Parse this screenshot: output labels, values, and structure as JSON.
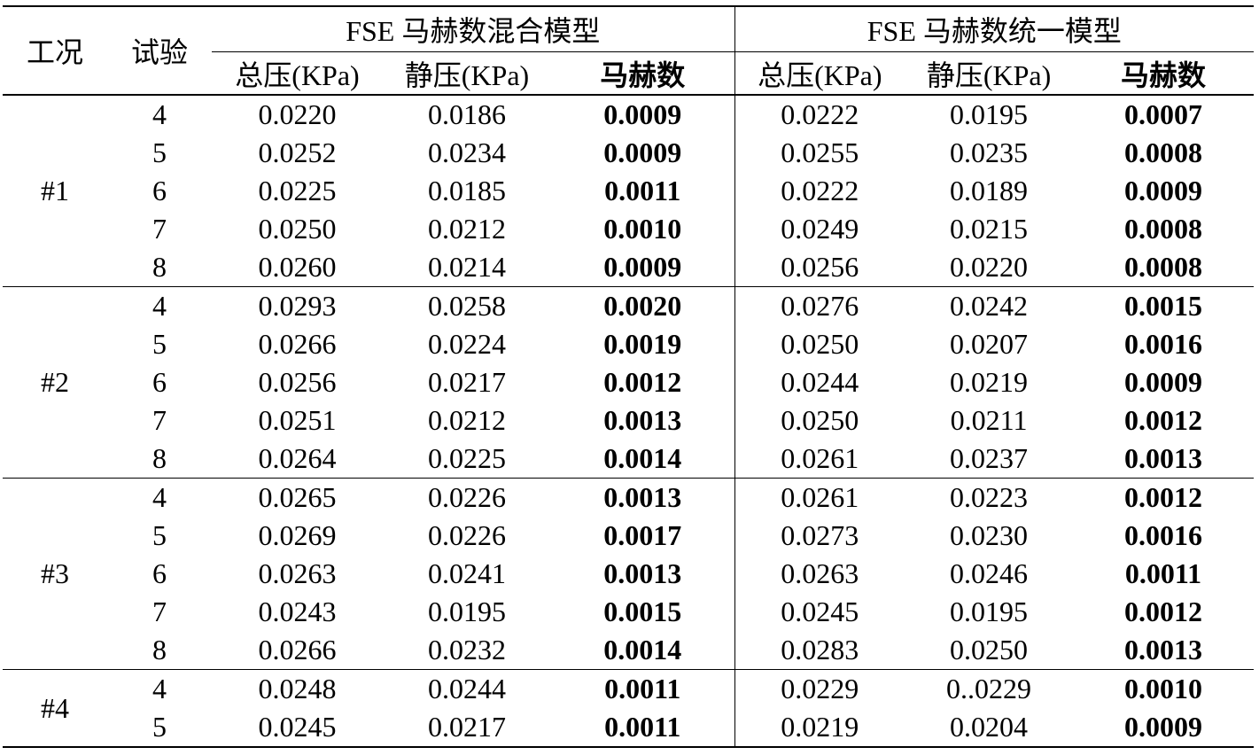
{
  "table": {
    "headers": {
      "condition": "工况",
      "trial": "试验",
      "group_left": "FSE 马赫数混合模型",
      "group_right": "FSE 马赫数统一模型",
      "total_pressure": "总压(KPa)",
      "static_pressure": "静压(KPa)",
      "mach": "马赫数"
    },
    "groups": [
      {
        "condition": "#1",
        "rows": [
          {
            "trial": "4",
            "mix_total": "0.0220",
            "mix_static": "0.0186",
            "mix_mach": "0.0009",
            "uni_total": "0.0222",
            "uni_static": "0.0195",
            "uni_mach": "0.0007"
          },
          {
            "trial": "5",
            "mix_total": "0.0252",
            "mix_static": "0.0234",
            "mix_mach": "0.0009",
            "uni_total": "0.0255",
            "uni_static": "0.0235",
            "uni_mach": "0.0008"
          },
          {
            "trial": "6",
            "mix_total": "0.0225",
            "mix_static": "0.0185",
            "mix_mach": "0.0011",
            "uni_total": "0.0222",
            "uni_static": "0.0189",
            "uni_mach": "0.0009"
          },
          {
            "trial": "7",
            "mix_total": "0.0250",
            "mix_static": "0.0212",
            "mix_mach": "0.0010",
            "uni_total": "0.0249",
            "uni_static": "0.0215",
            "uni_mach": "0.0008"
          },
          {
            "trial": "8",
            "mix_total": "0.0260",
            "mix_static": "0.0214",
            "mix_mach": "0.0009",
            "uni_total": "0.0256",
            "uni_static": "0.0220",
            "uni_mach": "0.0008"
          }
        ]
      },
      {
        "condition": "#2",
        "rows": [
          {
            "trial": "4",
            "mix_total": "0.0293",
            "mix_static": "0.0258",
            "mix_mach": "0.0020",
            "uni_total": "0.0276",
            "uni_static": "0.0242",
            "uni_mach": "0.0015"
          },
          {
            "trial": "5",
            "mix_total": "0.0266",
            "mix_static": "0.0224",
            "mix_mach": "0.0019",
            "uni_total": "0.0250",
            "uni_static": "0.0207",
            "uni_mach": "0.0016"
          },
          {
            "trial": "6",
            "mix_total": "0.0256",
            "mix_static": "0.0217",
            "mix_mach": "0.0012",
            "uni_total": "0.0244",
            "uni_static": "0.0219",
            "uni_mach": "0.0009"
          },
          {
            "trial": "7",
            "mix_total": "0.0251",
            "mix_static": "0.0212",
            "mix_mach": "0.0013",
            "uni_total": "0.0250",
            "uni_static": "0.0211",
            "uni_mach": "0.0012"
          },
          {
            "trial": "8",
            "mix_total": "0.0264",
            "mix_static": "0.0225",
            "mix_mach": "0.0014",
            "uni_total": "0.0261",
            "uni_static": "0.0237",
            "uni_mach": "0.0013"
          }
        ]
      },
      {
        "condition": "#3",
        "rows": [
          {
            "trial": "4",
            "mix_total": "0.0265",
            "mix_static": "0.0226",
            "mix_mach": "0.0013",
            "uni_total": "0.0261",
            "uni_static": "0.0223",
            "uni_mach": "0.0012"
          },
          {
            "trial": "5",
            "mix_total": "0.0269",
            "mix_static": "0.0226",
            "mix_mach": "0.0017",
            "uni_total": "0.0273",
            "uni_static": "0.0230",
            "uni_mach": "0.0016"
          },
          {
            "trial": "6",
            "mix_total": "0.0263",
            "mix_static": "0.0241",
            "mix_mach": "0.0013",
            "uni_total": "0.0263",
            "uni_static": "0.0246",
            "uni_mach": "0.0011"
          },
          {
            "trial": "7",
            "mix_total": "0.0243",
            "mix_static": "0.0195",
            "mix_mach": "0.0015",
            "uni_total": "0.0245",
            "uni_static": "0.0195",
            "uni_mach": "0.0012"
          },
          {
            "trial": "8",
            "mix_total": "0.0266",
            "mix_static": "0.0232",
            "mix_mach": "0.0014",
            "uni_total": "0.0283",
            "uni_static": "0.0250",
            "uni_mach": "0.0013"
          }
        ]
      },
      {
        "condition": "#4",
        "rows": [
          {
            "trial": "4",
            "mix_total": "0.0248",
            "mix_static": "0.0244",
            "mix_mach": "0.0011",
            "uni_total": "0.0229",
            "uni_static": "0..0229",
            "uni_mach": "0.0010"
          },
          {
            "trial": "5",
            "mix_total": "0.0245",
            "mix_static": "0.0217",
            "mix_mach": "0.0011",
            "uni_total": "0.0219",
            "uni_static": "0.0204",
            "uni_mach": "0.0009"
          }
        ]
      }
    ]
  }
}
